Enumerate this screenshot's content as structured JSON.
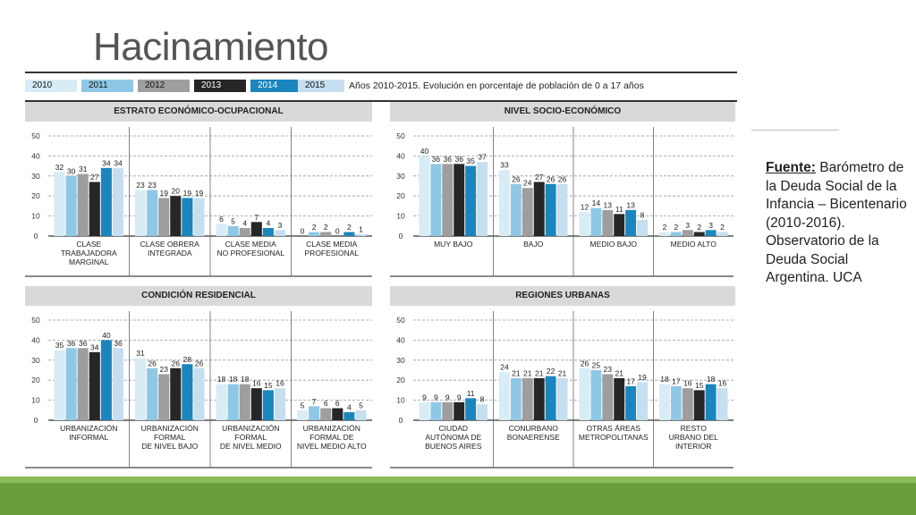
{
  "title": "Hacinamiento",
  "legend": {
    "years": [
      "2010",
      "2011",
      "2012",
      "2013",
      "2014",
      "2015"
    ],
    "colors": [
      "#d7ecf5",
      "#8fc8e6",
      "#9e9e9e",
      "#262626",
      "#1b86bd",
      "#c5dff0"
    ],
    "description": "Años 2010-2015. Evolución en porcentaje de población de 0 a 17 años"
  },
  "source": {
    "label": "Fuente:",
    "text": "Barómetro de la Deuda Social de la Infancia – Bicentenario (2010-2016). Observatorio de la Deuda Social Argentina. UCA"
  },
  "chart_data": [
    {
      "type": "bar",
      "title": "ESTRATO ECONÓMICO-OCUPACIONAL",
      "ylim": [
        0,
        50
      ],
      "yticks": [
        0,
        10,
        20,
        30,
        40,
        50
      ],
      "categories": [
        [
          "CLASE",
          "TRABAJADORA",
          "MARGINAL"
        ],
        [
          "CLASE OBRERA",
          "INTEGRADA"
        ],
        [
          "CLASE MEDIA",
          "NO PROFESIONAL"
        ],
        [
          "CLASE MEDIA",
          "PROFESIONAL"
        ]
      ],
      "series": [
        {
          "name": "2010",
          "values": [
            32,
            23,
            6,
            0
          ]
        },
        {
          "name": "2011",
          "values": [
            30,
            23,
            5,
            2
          ]
        },
        {
          "name": "2012",
          "values": [
            31,
            19,
            4,
            2
          ]
        },
        {
          "name": "2013",
          "values": [
            27,
            20,
            7,
            0
          ]
        },
        {
          "name": "2014",
          "values": [
            34,
            19,
            4,
            2
          ]
        },
        {
          "name": "2015",
          "values": [
            34,
            19,
            3,
            1
          ]
        }
      ]
    },
    {
      "type": "bar",
      "title": "NIVEL SOCIO-ECONÓMICO",
      "ylim": [
        0,
        50
      ],
      "yticks": [
        0,
        10,
        20,
        30,
        40,
        50
      ],
      "categories": [
        [
          "MUY BAJO"
        ],
        [
          "BAJO"
        ],
        [
          "MEDIO BAJO"
        ],
        [
          "MEDIO ALTO"
        ]
      ],
      "series": [
        {
          "name": "2010",
          "values": [
            40,
            33,
            12,
            2
          ]
        },
        {
          "name": "2011",
          "values": [
            36,
            26,
            14,
            2
          ]
        },
        {
          "name": "2012",
          "values": [
            36,
            24,
            13,
            3
          ]
        },
        {
          "name": "2013",
          "values": [
            36,
            27,
            11,
            2
          ]
        },
        {
          "name": "2014",
          "values": [
            35,
            26,
            13,
            3
          ]
        },
        {
          "name": "2015",
          "values": [
            37,
            26,
            8,
            2
          ]
        }
      ]
    },
    {
      "type": "bar",
      "title": "CONDICIÓN RESIDENCIAL",
      "ylim": [
        0,
        50
      ],
      "yticks": [
        0,
        10,
        20,
        30,
        40,
        50
      ],
      "categories": [
        [
          "URBANIZACIÓN",
          "INFORMAL"
        ],
        [
          "URBANIZACIÓN",
          "FORMAL",
          "DE NIVEL BAJO"
        ],
        [
          "URBANIZACIÓN",
          "FORMAL",
          "DE NIVEL MEDIO"
        ],
        [
          "URBANIZACIÓN",
          "FORMAL DE",
          "NIVEL MEDIO ALTO"
        ]
      ],
      "series": [
        {
          "name": "2010",
          "values": [
            35,
            31,
            18,
            5
          ]
        },
        {
          "name": "2011",
          "values": [
            36,
            26,
            18,
            7
          ]
        },
        {
          "name": "2012",
          "values": [
            36,
            23,
            18,
            6
          ]
        },
        {
          "name": "2013",
          "values": [
            34,
            26,
            16,
            6
          ]
        },
        {
          "name": "2014",
          "values": [
            40,
            28,
            15,
            4
          ]
        },
        {
          "name": "2015",
          "values": [
            36,
            26,
            16,
            5
          ]
        }
      ]
    },
    {
      "type": "bar",
      "title": "REGIONES URBANAS",
      "ylim": [
        0,
        50
      ],
      "yticks": [
        0,
        10,
        20,
        30,
        40,
        50
      ],
      "categories": [
        [
          "CIUDAD",
          "AUTÓNOMA DE",
          "BUENOS AIRES"
        ],
        [
          "CONURBANO",
          "BONAERENSE"
        ],
        [
          "OTRAS ÁREAS",
          "METROPOLITANAS"
        ],
        [
          "RESTO",
          "URBANO DEL",
          "INTERIOR"
        ]
      ],
      "series": [
        {
          "name": "2010",
          "values": [
            9,
            24,
            26,
            18
          ]
        },
        {
          "name": "2011",
          "values": [
            9,
            21,
            25,
            17
          ]
        },
        {
          "name": "2012",
          "values": [
            9,
            21,
            23,
            16
          ]
        },
        {
          "name": "2013",
          "values": [
            9,
            21,
            21,
            15
          ]
        },
        {
          "name": "2014",
          "values": [
            11,
            22,
            17,
            18
          ]
        },
        {
          "name": "2015",
          "values": [
            8,
            21,
            19,
            16
          ]
        }
      ]
    }
  ]
}
